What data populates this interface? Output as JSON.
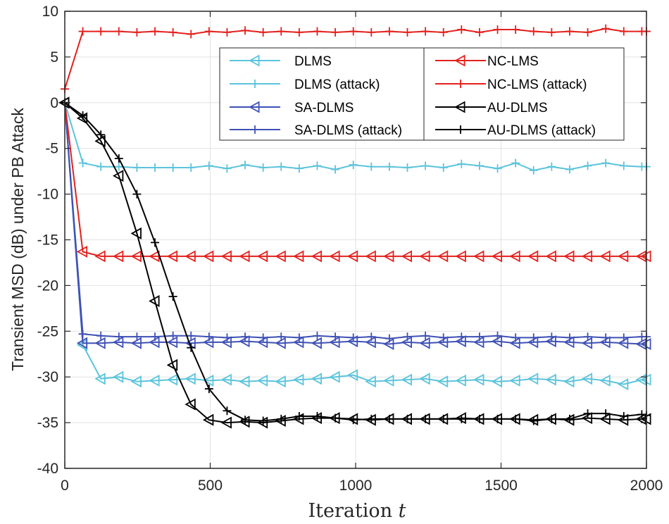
{
  "chart_data": {
    "type": "line",
    "title": "",
    "xlabel": "Iteration ",
    "xlabel_var": "t",
    "ylabel": "Transient MSD (dB) under PB Attack",
    "xlim": [
      0,
      2000
    ],
    "ylim": [
      -40,
      10
    ],
    "xticks": [
      0,
      500,
      1000,
      1500,
      2000
    ],
    "yticks": [
      10,
      5,
      0,
      -5,
      -10,
      -15,
      -20,
      -25,
      -30,
      -35,
      -40
    ],
    "grid": true,
    "legend_position": "top-right",
    "x": [
      0,
      62,
      124,
      186,
      248,
      310,
      372,
      434,
      496,
      558,
      620,
      682,
      744,
      806,
      868,
      930,
      992,
      1054,
      1116,
      1178,
      1240,
      1302,
      1364,
      1426,
      1488,
      1550,
      1612,
      1674,
      1736,
      1798,
      1860,
      1922,
      1984,
      2000
    ],
    "series": [
      {
        "name": "DLMS",
        "color": "#5bc4dc",
        "marker": "triangle-left",
        "values": [
          0,
          -26.5,
          -30.2,
          -30.0,
          -30.5,
          -30.4,
          -30.3,
          -30.2,
          -30.4,
          -30.3,
          -30.5,
          -30.4,
          -30.5,
          -30.3,
          -30.2,
          -30.0,
          -29.8,
          -30.5,
          -30.4,
          -30.3,
          -30.2,
          -30.5,
          -30.4,
          -30.3,
          -30.5,
          -30.4,
          -30.2,
          -30.3,
          -30.5,
          -30.2,
          -30.4,
          -30.8,
          -30.3,
          -30.3
        ]
      },
      {
        "name": "DLMS (attack)",
        "color": "#5bc4dc",
        "marker": "plus",
        "values": [
          0,
          -6.6,
          -7.0,
          -7.0,
          -7.1,
          -7.1,
          -7.1,
          -7.1,
          -6.9,
          -7.2,
          -6.8,
          -7.1,
          -7.0,
          -7.2,
          -6.9,
          -7.3,
          -6.8,
          -7.0,
          -7.0,
          -7.1,
          -6.9,
          -7.1,
          -6.7,
          -6.9,
          -7.2,
          -6.6,
          -7.4,
          -7.0,
          -7.3,
          -6.9,
          -6.6,
          -6.9,
          -7.0,
          -7.0
        ]
      },
      {
        "name": "SA-DLMS",
        "color": "#3f51b5",
        "marker": "triangle-left",
        "values": [
          0,
          -26.3,
          -26.3,
          -26.2,
          -26.3,
          -26.2,
          -26.2,
          -26.3,
          -26.2,
          -26.2,
          -26.1,
          -26.2,
          -26.3,
          -26.2,
          -26.3,
          -26.2,
          -26.1,
          -26.2,
          -26.4,
          -26.2,
          -26.3,
          -26.2,
          -26.1,
          -26.2,
          -26.1,
          -26.3,
          -26.2,
          -26.1,
          -26.2,
          -26.3,
          -26.2,
          -26.3,
          -26.4,
          -26.4
        ]
      },
      {
        "name": "SA-DLMS (attack)",
        "color": "#3f51b5",
        "marker": "plus",
        "values": [
          0,
          -25.3,
          -25.5,
          -25.6,
          -25.6,
          -25.6,
          -25.5,
          -25.5,
          -25.6,
          -25.7,
          -25.6,
          -25.7,
          -25.6,
          -25.7,
          -25.5,
          -25.6,
          -25.7,
          -25.6,
          -25.8,
          -25.6,
          -25.5,
          -25.7,
          -25.6,
          -25.6,
          -25.5,
          -25.7,
          -25.7,
          -25.6,
          -25.7,
          -25.6,
          -25.7,
          -25.7,
          -25.6,
          -25.6
        ]
      },
      {
        "name": "NC-LMS",
        "color": "#e4201c",
        "marker": "triangle-left",
        "values": [
          0,
          -16.3,
          -16.8,
          -16.8,
          -16.8,
          -16.8,
          -16.8,
          -16.8,
          -16.8,
          -16.8,
          -16.8,
          -16.8,
          -16.8,
          -16.8,
          -16.8,
          -16.8,
          -16.8,
          -16.8,
          -16.8,
          -16.8,
          -16.8,
          -16.8,
          -16.8,
          -16.8,
          -16.8,
          -16.8,
          -16.8,
          -16.8,
          -16.8,
          -16.8,
          -16.8,
          -16.8,
          -16.8,
          -16.8
        ]
      },
      {
        "name": "NC-LMS (attack)",
        "color": "#e4201c",
        "marker": "plus",
        "values": [
          1.5,
          7.8,
          7.8,
          7.8,
          7.7,
          7.8,
          7.7,
          7.5,
          7.8,
          7.7,
          7.9,
          7.7,
          7.8,
          7.7,
          7.8,
          7.7,
          7.8,
          7.7,
          7.8,
          7.7,
          7.8,
          7.7,
          8.0,
          7.7,
          8.0,
          8.0,
          7.8,
          7.7,
          7.8,
          7.7,
          8.1,
          7.8,
          7.8,
          7.8
        ]
      },
      {
        "name": "AU-DLMS",
        "color": "#000000",
        "marker": "triangle-left",
        "values": [
          0,
          -1.7,
          -4.2,
          -8.0,
          -14.3,
          -21.7,
          -28.7,
          -33.0,
          -34.7,
          -35.0,
          -34.9,
          -35.0,
          -34.8,
          -34.6,
          -34.5,
          -34.5,
          -34.6,
          -34.7,
          -34.6,
          -34.6,
          -34.6,
          -34.6,
          -34.5,
          -34.6,
          -34.6,
          -34.6,
          -34.7,
          -34.6,
          -34.7,
          -34.5,
          -34.6,
          -34.7,
          -34.6,
          -34.6
        ]
      },
      {
        "name": "AU-DLMS (attack)",
        "color": "#000000",
        "marker": "plus",
        "values": [
          0,
          -1.4,
          -3.5,
          -6.1,
          -10.0,
          -15.3,
          -21.2,
          -26.8,
          -31.3,
          -33.7,
          -34.7,
          -34.8,
          -34.6,
          -34.3,
          -34.3,
          -34.5,
          -34.7,
          -34.6,
          -34.6,
          -34.6,
          -34.6,
          -34.6,
          -34.6,
          -34.6,
          -34.6,
          -34.6,
          -34.8,
          -34.6,
          -34.6,
          -34.0,
          -34.0,
          -34.3,
          -34.1,
          -34.2
        ]
      }
    ]
  }
}
